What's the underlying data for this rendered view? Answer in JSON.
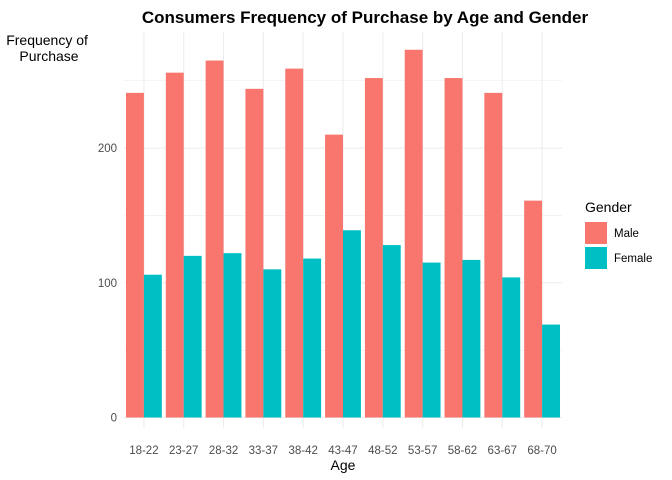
{
  "chart_data": {
    "type": "bar",
    "title": "Consumers Frequency of Purchase by Age and Gender",
    "xlabel": "Age",
    "ylabel_lines": [
      "Frequency of",
      "Purchase"
    ],
    "categories": [
      "18-22",
      "23-27",
      "28-32",
      "33-37",
      "38-42",
      "43-47",
      "48-52",
      "53-57",
      "58-62",
      "63-67",
      "68-70"
    ],
    "series": [
      {
        "name": "Male",
        "color": "#F8766D",
        "values": [
          241,
          256,
          265,
          244,
          259,
          210,
          252,
          273,
          252,
          241,
          161
        ]
      },
      {
        "name": "Female",
        "color": "#00BFC4",
        "values": [
          106,
          120,
          122,
          110,
          118,
          139,
          128,
          115,
          117,
          104,
          69
        ]
      }
    ],
    "ylim": [
      0,
      285
    ],
    "yticks": [
      0,
      100,
      200
    ],
    "grid": true,
    "legend_title": "Gender",
    "legend_position": "right"
  }
}
